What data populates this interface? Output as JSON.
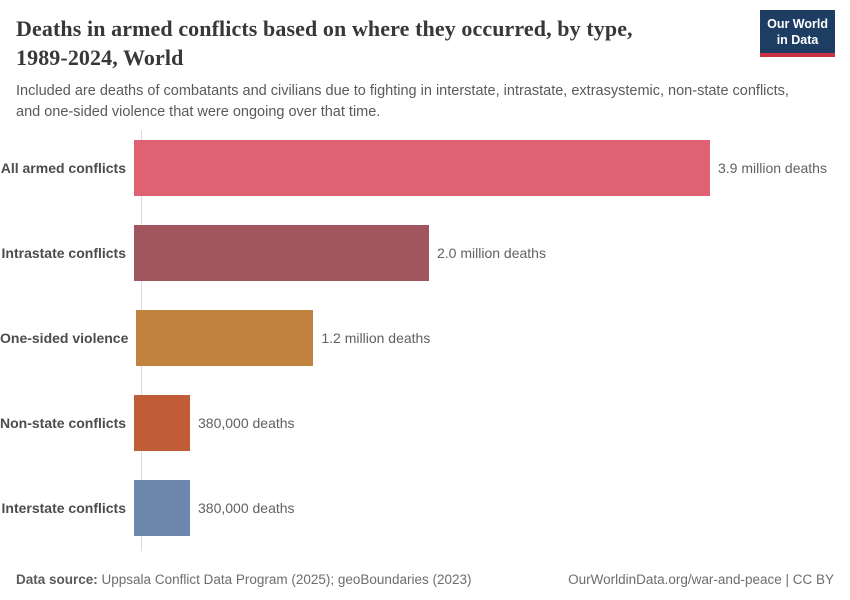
{
  "header": {
    "title": "Deaths in armed conflicts based on where they occurred, by type,\n1989-2024, World",
    "subtitle": "Included are deaths of combatants and civilians due to fighting in interstate, intrastate, extrasystemic, non-state conflicts,\nand one-sided violence that were ongoing over that time."
  },
  "logo": {
    "text": "Our World\nin Data",
    "background_color": "#1d3d63",
    "underline_color": "#cb3043"
  },
  "chart_data": {
    "type": "bar",
    "orientation": "horizontal",
    "title": "Deaths in armed conflicts based on where they occurred, by type, 1989-2024, World",
    "categories": [
      "All armed conflicts",
      "Intrastate conflicts",
      "One-sided violence",
      "Non-state conflicts",
      "Interstate conflicts"
    ],
    "values": [
      3900000,
      2000000,
      1200000,
      380000,
      380000
    ],
    "value_labels": [
      "3.9 million deaths",
      "2.0 million deaths",
      "1.2 million deaths",
      "380,000 deaths",
      "380,000 deaths"
    ],
    "colors": [
      "#de6271",
      "#a1565f",
      "#c2823f",
      "#c15c39",
      "#6e88ad"
    ],
    "xlabel": "",
    "ylabel": "",
    "xlim": [
      0,
      3900000
    ],
    "grid": false,
    "legend": false
  },
  "footer": {
    "source_label": "Data source:",
    "source_value": " Uppsala Conflict Data Program (2025); geoBoundaries (2023)",
    "attribution": "OurWorldinData.org/war-and-peace | CC BY"
  }
}
